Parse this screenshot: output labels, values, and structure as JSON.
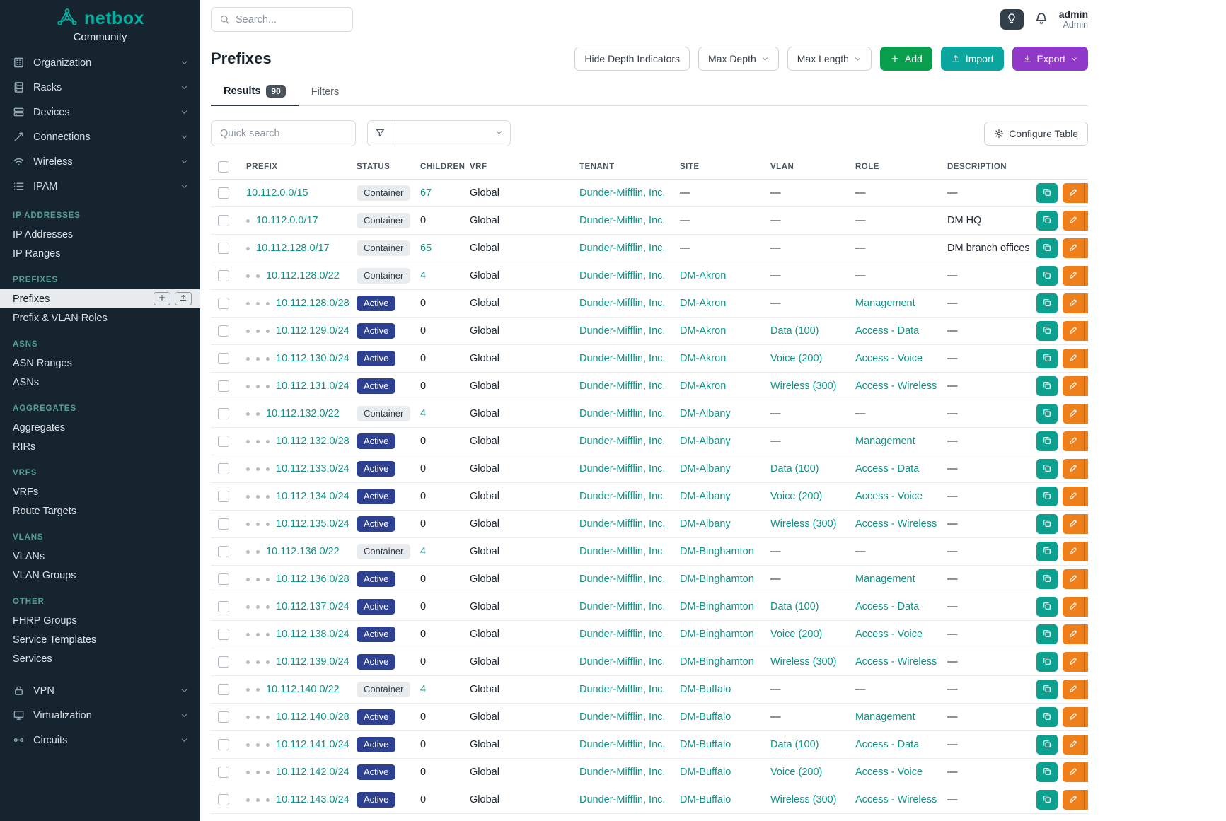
{
  "brand": {
    "name": "netbox",
    "subtitle": "Community"
  },
  "topbar": {
    "search_placeholder": "Search...",
    "user_name": "admin",
    "user_role": "Admin"
  },
  "sidebar": {
    "top_items": [
      {
        "label": "Organization",
        "icon": "organization-icon"
      },
      {
        "label": "Racks",
        "icon": "racks-icon"
      },
      {
        "label": "Devices",
        "icon": "devices-icon"
      },
      {
        "label": "Connections",
        "icon": "connections-icon"
      },
      {
        "label": "Wireless",
        "icon": "wireless-icon"
      },
      {
        "label": "IPAM",
        "icon": "ipam-icon"
      }
    ],
    "sections": [
      {
        "heading": "IP Addresses",
        "items": [
          {
            "label": "IP Addresses"
          },
          {
            "label": "IP Ranges"
          }
        ]
      },
      {
        "heading": "Prefixes",
        "items": [
          {
            "label": "Prefixes",
            "active": true,
            "actions": [
              "plus-icon",
              "import-icon"
            ]
          },
          {
            "label": "Prefix & VLAN Roles"
          }
        ]
      },
      {
        "heading": "ASNs",
        "items": [
          {
            "label": "ASN Ranges"
          },
          {
            "label": "ASNs"
          }
        ]
      },
      {
        "heading": "Aggregates",
        "items": [
          {
            "label": "Aggregates"
          },
          {
            "label": "RIRs"
          }
        ]
      },
      {
        "heading": "VRFs",
        "items": [
          {
            "label": "VRFs"
          },
          {
            "label": "Route Targets"
          }
        ]
      },
      {
        "heading": "VLANs",
        "items": [
          {
            "label": "VLANs"
          },
          {
            "label": "VLAN Groups"
          }
        ]
      },
      {
        "heading": "Other",
        "items": [
          {
            "label": "FHRP Groups"
          },
          {
            "label": "Service Templates"
          },
          {
            "label": "Services"
          }
        ]
      }
    ],
    "bottom_items": [
      {
        "label": "VPN",
        "icon": "vpn-icon"
      },
      {
        "label": "Virtualization",
        "icon": "virtualization-icon"
      },
      {
        "label": "Circuits",
        "icon": "circuits-icon"
      }
    ]
  },
  "page": {
    "title": "Prefixes",
    "toolbar": {
      "hide_depth_label": "Hide Depth Indicators",
      "max_depth_label": "Max Depth",
      "max_length_label": "Max Length",
      "add_label": "Add",
      "import_label": "Import",
      "export_label": "Export"
    },
    "tabs": [
      {
        "label": "Results",
        "badge": "90"
      },
      {
        "label": "Filters"
      }
    ],
    "quick_search_placeholder": "Quick search",
    "configure_table_label": "Configure Table"
  },
  "table": {
    "columns": [
      "Prefix",
      "Status",
      "Children",
      "VRF",
      "Tenant",
      "Site",
      "VLAN",
      "Role",
      "Description"
    ],
    "rows": [
      {
        "depth": 0,
        "prefix": "10.112.0.0/15",
        "status": "Container",
        "children": "67",
        "vrf": "Global",
        "tenant": "Dunder-Mifflin, Inc.",
        "site": "—",
        "vlan": "—",
        "role": "—",
        "description": "—"
      },
      {
        "depth": 1,
        "prefix": "10.112.0.0/17",
        "status": "Container",
        "children": "0",
        "vrf": "Global",
        "tenant": "Dunder-Mifflin, Inc.",
        "site": "—",
        "vlan": "—",
        "role": "—",
        "description": "DM HQ"
      },
      {
        "depth": 1,
        "prefix": "10.112.128.0/17",
        "status": "Container",
        "children": "65",
        "vrf": "Global",
        "tenant": "Dunder-Mifflin, Inc.",
        "site": "—",
        "vlan": "—",
        "role": "—",
        "description": "DM branch offices"
      },
      {
        "depth": 2,
        "prefix": "10.112.128.0/22",
        "status": "Container",
        "children": "4",
        "vrf": "Global",
        "tenant": "Dunder-Mifflin, Inc.",
        "site": "DM-Akron",
        "vlan": "—",
        "role": "—",
        "description": "—"
      },
      {
        "depth": 3,
        "prefix": "10.112.128.0/28",
        "status": "Active",
        "children": "0",
        "vrf": "Global",
        "tenant": "Dunder-Mifflin, Inc.",
        "site": "DM-Akron",
        "vlan": "—",
        "role": "Management",
        "description": "—"
      },
      {
        "depth": 3,
        "prefix": "10.112.129.0/24",
        "status": "Active",
        "children": "0",
        "vrf": "Global",
        "tenant": "Dunder-Mifflin, Inc.",
        "site": "DM-Akron",
        "vlan": "Data (100)",
        "role": "Access - Data",
        "description": "—"
      },
      {
        "depth": 3,
        "prefix": "10.112.130.0/24",
        "status": "Active",
        "children": "0",
        "vrf": "Global",
        "tenant": "Dunder-Mifflin, Inc.",
        "site": "DM-Akron",
        "vlan": "Voice (200)",
        "role": "Access - Voice",
        "description": "—"
      },
      {
        "depth": 3,
        "prefix": "10.112.131.0/24",
        "status": "Active",
        "children": "0",
        "vrf": "Global",
        "tenant": "Dunder-Mifflin, Inc.",
        "site": "DM-Akron",
        "vlan": "Wireless (300)",
        "role": "Access - Wireless",
        "description": "—"
      },
      {
        "depth": 2,
        "prefix": "10.112.132.0/22",
        "status": "Container",
        "children": "4",
        "vrf": "Global",
        "tenant": "Dunder-Mifflin, Inc.",
        "site": "DM-Albany",
        "vlan": "—",
        "role": "—",
        "description": "—"
      },
      {
        "depth": 3,
        "prefix": "10.112.132.0/28",
        "status": "Active",
        "children": "0",
        "vrf": "Global",
        "tenant": "Dunder-Mifflin, Inc.",
        "site": "DM-Albany",
        "vlan": "—",
        "role": "Management",
        "description": "—"
      },
      {
        "depth": 3,
        "prefix": "10.112.133.0/24",
        "status": "Active",
        "children": "0",
        "vrf": "Global",
        "tenant": "Dunder-Mifflin, Inc.",
        "site": "DM-Albany",
        "vlan": "Data (100)",
        "role": "Access - Data",
        "description": "—"
      },
      {
        "depth": 3,
        "prefix": "10.112.134.0/24",
        "status": "Active",
        "children": "0",
        "vrf": "Global",
        "tenant": "Dunder-Mifflin, Inc.",
        "site": "DM-Albany",
        "vlan": "Voice (200)",
        "role": "Access - Voice",
        "description": "—"
      },
      {
        "depth": 3,
        "prefix": "10.112.135.0/24",
        "status": "Active",
        "children": "0",
        "vrf": "Global",
        "tenant": "Dunder-Mifflin, Inc.",
        "site": "DM-Albany",
        "vlan": "Wireless (300)",
        "role": "Access - Wireless",
        "description": "—"
      },
      {
        "depth": 2,
        "prefix": "10.112.136.0/22",
        "status": "Container",
        "children": "4",
        "vrf": "Global",
        "tenant": "Dunder-Mifflin, Inc.",
        "site": "DM-Binghamton",
        "vlan": "—",
        "role": "—",
        "description": "—"
      },
      {
        "depth": 3,
        "prefix": "10.112.136.0/28",
        "status": "Active",
        "children": "0",
        "vrf": "Global",
        "tenant": "Dunder-Mifflin, Inc.",
        "site": "DM-Binghamton",
        "vlan": "—",
        "role": "Management",
        "description": "—"
      },
      {
        "depth": 3,
        "prefix": "10.112.137.0/24",
        "status": "Active",
        "children": "0",
        "vrf": "Global",
        "tenant": "Dunder-Mifflin, Inc.",
        "site": "DM-Binghamton",
        "vlan": "Data (100)",
        "role": "Access - Data",
        "description": "—"
      },
      {
        "depth": 3,
        "prefix": "10.112.138.0/24",
        "status": "Active",
        "children": "0",
        "vrf": "Global",
        "tenant": "Dunder-Mifflin, Inc.",
        "site": "DM-Binghamton",
        "vlan": "Voice (200)",
        "role": "Access - Voice",
        "description": "—"
      },
      {
        "depth": 3,
        "prefix": "10.112.139.0/24",
        "status": "Active",
        "children": "0",
        "vrf": "Global",
        "tenant": "Dunder-Mifflin, Inc.",
        "site": "DM-Binghamton",
        "vlan": "Wireless (300)",
        "role": "Access - Wireless",
        "description": "—"
      },
      {
        "depth": 2,
        "prefix": "10.112.140.0/22",
        "status": "Container",
        "children": "4",
        "vrf": "Global",
        "tenant": "Dunder-Mifflin, Inc.",
        "site": "DM-Buffalo",
        "vlan": "—",
        "role": "—",
        "description": "—"
      },
      {
        "depth": 3,
        "prefix": "10.112.140.0/28",
        "status": "Active",
        "children": "0",
        "vrf": "Global",
        "tenant": "Dunder-Mifflin, Inc.",
        "site": "DM-Buffalo",
        "vlan": "—",
        "role": "Management",
        "description": "—"
      },
      {
        "depth": 3,
        "prefix": "10.112.141.0/24",
        "status": "Active",
        "children": "0",
        "vrf": "Global",
        "tenant": "Dunder-Mifflin, Inc.",
        "site": "DM-Buffalo",
        "vlan": "Data (100)",
        "role": "Access - Data",
        "description": "—"
      },
      {
        "depth": 3,
        "prefix": "10.112.142.0/24",
        "status": "Active",
        "children": "0",
        "vrf": "Global",
        "tenant": "Dunder-Mifflin, Inc.",
        "site": "DM-Buffalo",
        "vlan": "Voice (200)",
        "role": "Access - Voice",
        "description": "—"
      },
      {
        "depth": 3,
        "prefix": "10.112.143.0/24",
        "status": "Active",
        "children": "0",
        "vrf": "Global",
        "tenant": "Dunder-Mifflin, Inc.",
        "site": "DM-Buffalo",
        "vlan": "Wireless (300)",
        "role": "Access - Wireless",
        "description": "—"
      }
    ]
  },
  "colors": {
    "brand_teal": "#00b3a1",
    "link_teal": "#0d9488",
    "status_active_bg": "#2e4190",
    "status_container_bg": "#e9ecef",
    "add_green": "#089e4e",
    "import_teal": "#0ba79e",
    "export_purple": "#9038c8",
    "edit_orange": "#ef7f1a",
    "clone_teal": "#0ca18f",
    "sidebar_bg": "#16242f"
  }
}
